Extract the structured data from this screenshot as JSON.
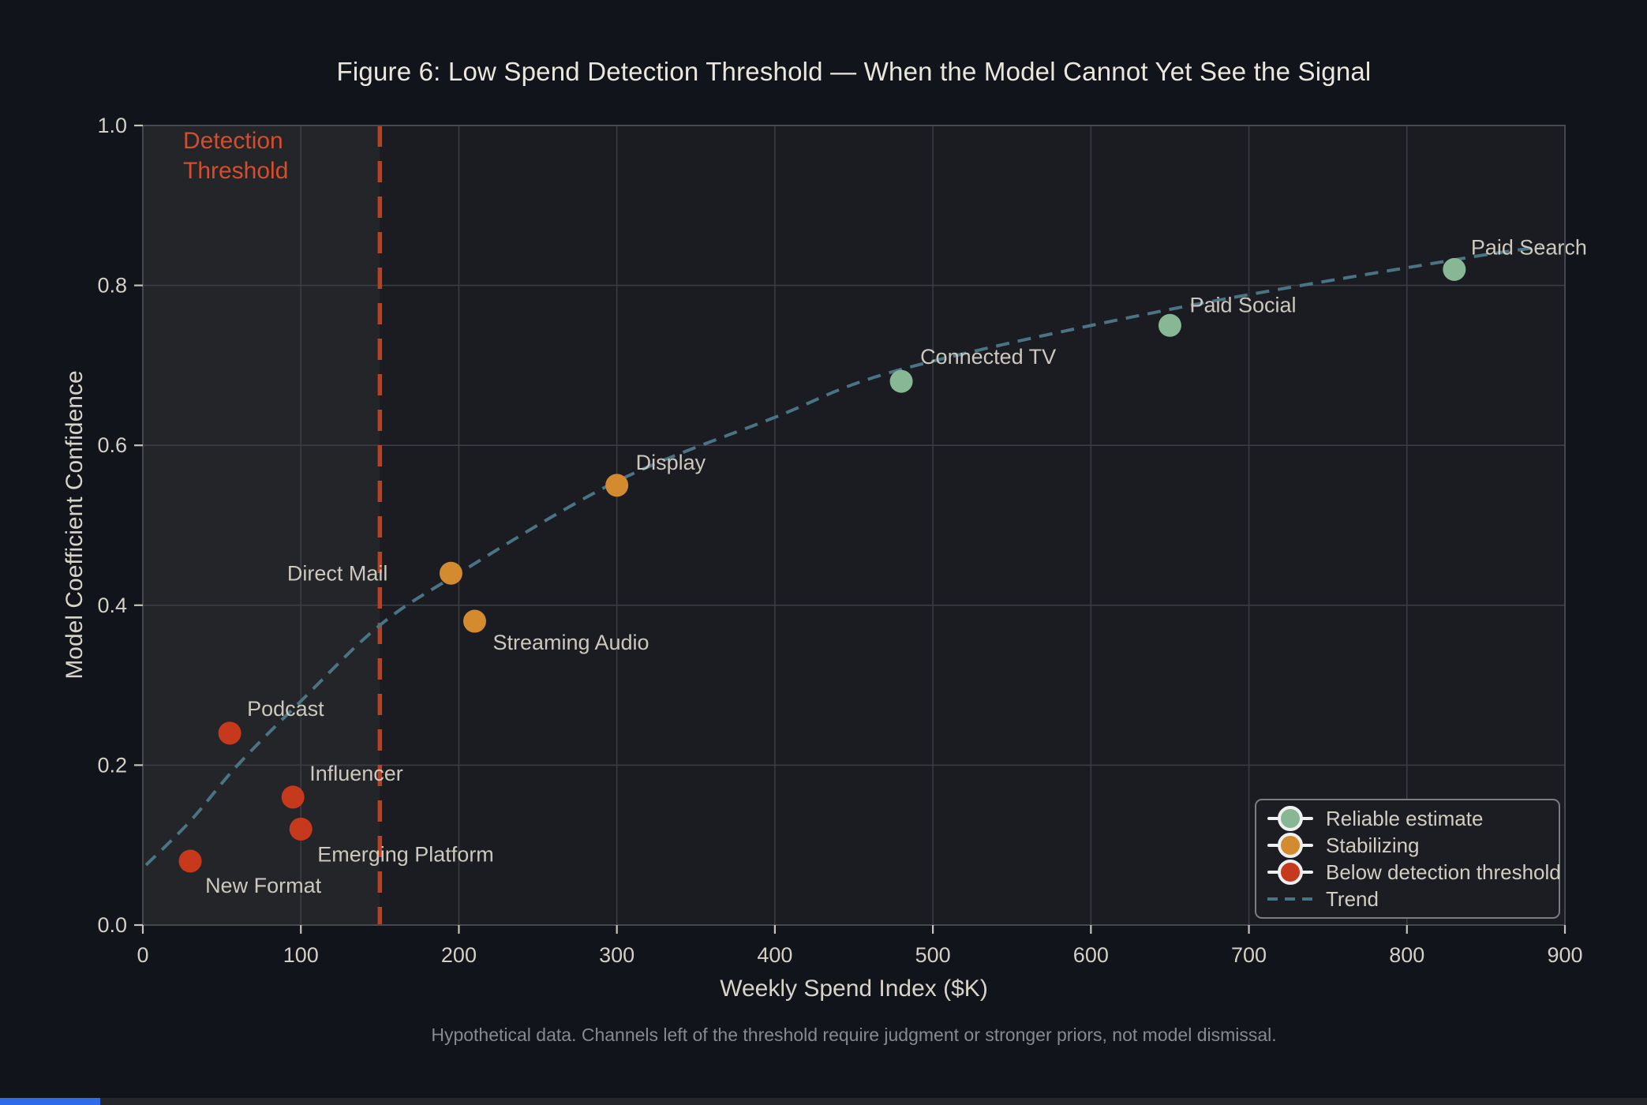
{
  "chart_data": {
    "type": "scatter",
    "title": "Figure 6: Low Spend Detection Threshold — When the Model Cannot Yet See the Signal",
    "xlabel": "Weekly Spend Index ($K)",
    "ylabel": "Model Coefficient Confidence",
    "caption": "Hypothetical data. Channels left of the threshold require judgment or stronger priors, not model dismissal.",
    "xlim": [
      0,
      900
    ],
    "ylim": [
      0.0,
      1.0
    ],
    "xticks": [
      0,
      100,
      200,
      300,
      400,
      500,
      600,
      700,
      800,
      900
    ],
    "yticks": [
      "0.0",
      "0.2",
      "0.4",
      "0.6",
      "0.8",
      "1.0"
    ],
    "grid": true,
    "legend_position": "lower right",
    "annotation": {
      "text": "Detection\nThreshold",
      "color": "#d54d2b"
    },
    "threshold": {
      "x": 150,
      "color": "#ba4022",
      "shade_color": "#232529",
      "shaded_side": "left"
    },
    "series": [
      {
        "name": "Reliable estimate",
        "color": "#87b794",
        "points": [
          {
            "label": "Connected TV",
            "x": 480,
            "y": 0.68,
            "anchor": "start",
            "dx": 24,
            "dy": -22
          },
          {
            "label": "Paid Social",
            "x": 650,
            "y": 0.75,
            "anchor": "start",
            "dx": 25,
            "dy": -17
          },
          {
            "label": "Paid Search",
            "x": 830,
            "y": 0.82,
            "anchor": "start",
            "dx": 21,
            "dy": -19
          }
        ]
      },
      {
        "name": "Stabilizing",
        "color": "#d48a2e",
        "points": [
          {
            "label": "Direct Mail",
            "x": 195,
            "y": 0.44,
            "anchor": "end",
            "dx": -80,
            "dy": 9
          },
          {
            "label": "Streaming Audio",
            "x": 210,
            "y": 0.38,
            "anchor": "start",
            "dx": 23,
            "dy": 36
          },
          {
            "label": "Display",
            "x": 300,
            "y": 0.55,
            "anchor": "start",
            "dx": 24,
            "dy": -20
          }
        ]
      },
      {
        "name": "Below detection threshold",
        "color": "#c7391d",
        "points": [
          {
            "label": "New Format",
            "x": 30,
            "y": 0.08,
            "anchor": "start",
            "dx": 19,
            "dy": 40
          },
          {
            "label": "Podcast",
            "x": 55,
            "y": 0.24,
            "anchor": "start",
            "dx": 22,
            "dy": -22
          },
          {
            "label": "Influencer",
            "x": 95,
            "y": 0.16,
            "anchor": "start",
            "dx": 21,
            "dy": -21
          },
          {
            "label": "Emerging Platform",
            "x": 100,
            "y": 0.12,
            "anchor": "start",
            "dx": 21,
            "dy": 41
          }
        ]
      }
    ],
    "trend": {
      "name": "Trend",
      "color": "#4a7383",
      "style": "dashed",
      "x": [
        2,
        30,
        60,
        100,
        150,
        200,
        300,
        400,
        480,
        650,
        830,
        885
      ],
      "y": [
        0.075,
        0.13,
        0.2,
        0.28,
        0.375,
        0.44,
        0.555,
        0.635,
        0.695,
        0.77,
        0.832,
        0.848
      ]
    }
  },
  "legend": {
    "items": [
      {
        "label": "Reliable estimate",
        "marker": "circle",
        "color": "#87b794"
      },
      {
        "label": "Stabilizing",
        "marker": "circle",
        "color": "#d48a2e"
      },
      {
        "label": "Below detection threshold",
        "marker": "circle",
        "color": "#c7391d"
      },
      {
        "label": "Trend",
        "marker": "dashed-line",
        "color": "#4a7383"
      }
    ]
  },
  "colors": {
    "page_bg": "#11141a",
    "plot_bg": "#1a1c21",
    "shade_bg": "#232529",
    "grid": "#3a3d43",
    "spine": "#45484e",
    "tick": "#c8c3b8",
    "tick_label": "#d5d0c5",
    "point_label": "#cdc8bd",
    "title": "#ebe7de",
    "footer": "#87898e",
    "bottom_bar_track": "#24262b",
    "bottom_bar_fill": "#2e6be6"
  }
}
